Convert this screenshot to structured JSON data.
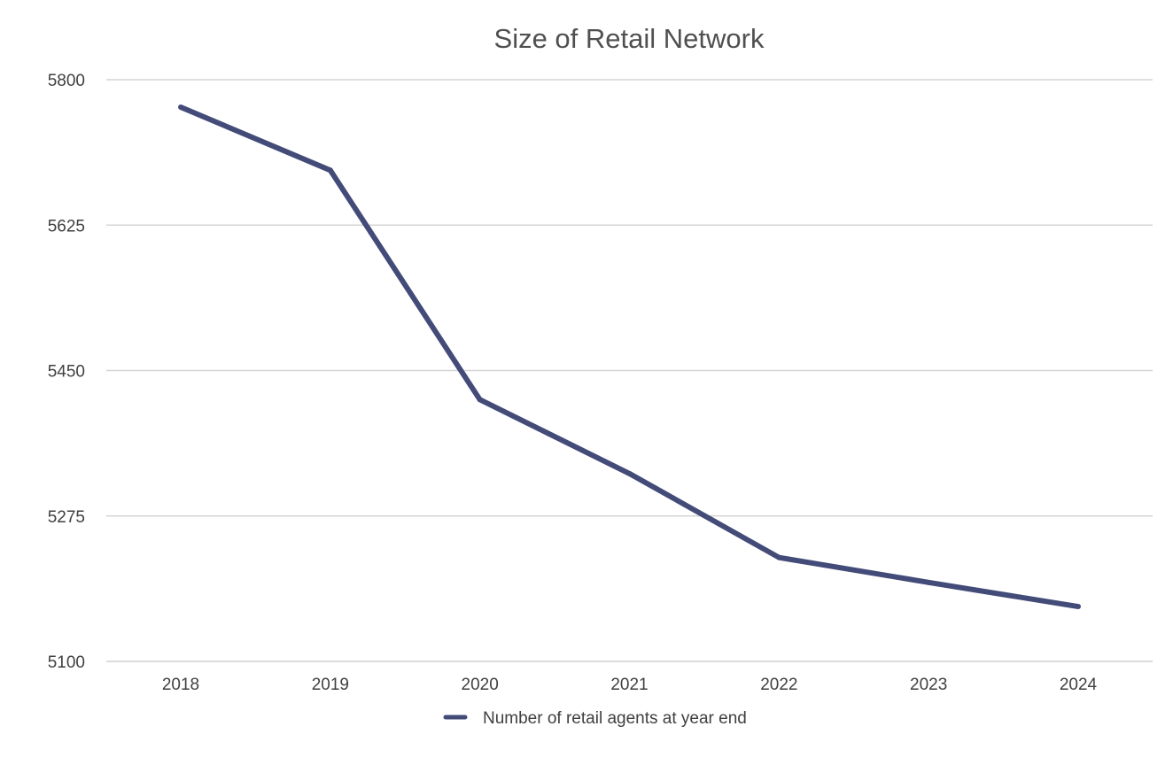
{
  "chart_data": {
    "type": "line",
    "title": "Size of Retail Network",
    "xlabel": "",
    "ylabel": "",
    "categories": [
      "2018",
      "2019",
      "2020",
      "2021",
      "2022",
      "2023",
      "2024"
    ],
    "series": [
      {
        "name": "Number of retail agents at year end",
        "values": [
          5767,
          5691,
          5415,
          5326,
          5225,
          5195,
          5166
        ],
        "color": "#434b78"
      }
    ],
    "ylim": [
      5100,
      5800
    ],
    "yticks": [
      "5100",
      "5275",
      "5450",
      "5625",
      "5800"
    ],
    "grid": true,
    "legend_position": "bottom"
  }
}
